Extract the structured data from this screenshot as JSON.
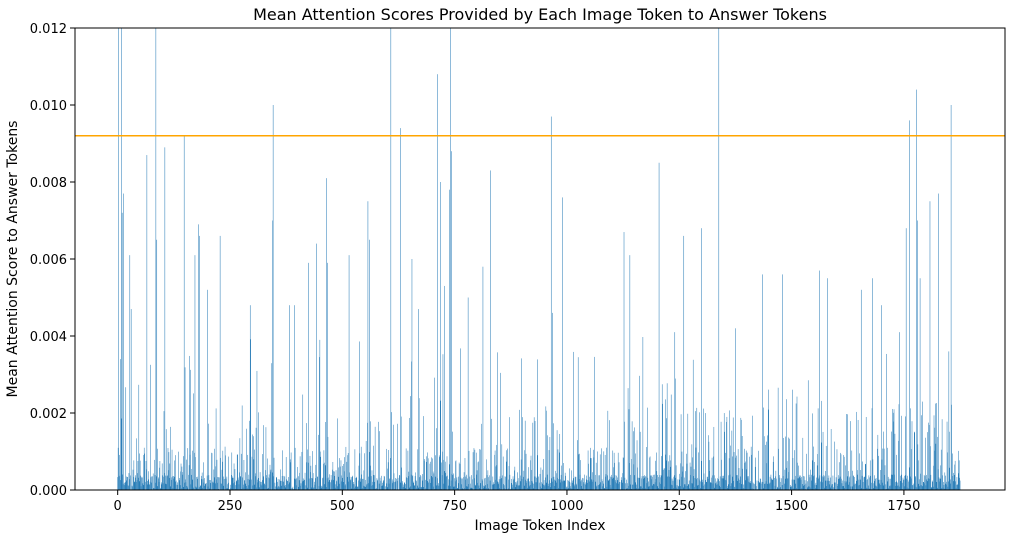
{
  "chart_data": {
    "type": "bar",
    "title": "Mean Attention Scores Provided by Each Image Token to Answer Tokens",
    "xlabel": "Image Token Index",
    "ylabel": "Mean Attention Score to Answer Tokens",
    "xlim": [
      -95,
      1975
    ],
    "ylim": [
      0,
      0.012
    ],
    "xticks": [
      0,
      250,
      500,
      750,
      1000,
      1250,
      1500,
      1750
    ],
    "yticks": [
      0.0,
      0.002,
      0.004,
      0.006,
      0.008,
      0.01,
      0.012
    ],
    "ytick_labels": [
      "0.000",
      "0.002",
      "0.004",
      "0.006",
      "0.008",
      "0.010",
      "0.012"
    ],
    "grid": false,
    "bar_color": "#1f77b4",
    "threshold": {
      "value": 0.0092,
      "color": "#ffa500"
    },
    "n_tokens": 1876,
    "notable_bars": [
      {
        "x": 2,
        "y": 0.012
      },
      {
        "x": 6,
        "y": 0.0034
      },
      {
        "x": 8,
        "y": 0.012
      },
      {
        "x": 10,
        "y": 0.0072
      },
      {
        "x": 13,
        "y": 0.0077
      },
      {
        "x": 27,
        "y": 0.0061
      },
      {
        "x": 30,
        "y": 0.0047
      },
      {
        "x": 65,
        "y": 0.0087
      },
      {
        "x": 85,
        "y": 0.012
      },
      {
        "x": 87,
        "y": 0.0065
      },
      {
        "x": 105,
        "y": 0.0089
      },
      {
        "x": 148,
        "y": 0.0092
      },
      {
        "x": 172,
        "y": 0.0061
      },
      {
        "x": 180,
        "y": 0.0069
      },
      {
        "x": 182,
        "y": 0.0066
      },
      {
        "x": 200,
        "y": 0.0052
      },
      {
        "x": 228,
        "y": 0.0066
      },
      {
        "x": 295,
        "y": 0.0048
      },
      {
        "x": 345,
        "y": 0.007
      },
      {
        "x": 346,
        "y": 0.01
      },
      {
        "x": 382,
        "y": 0.0048
      },
      {
        "x": 393,
        "y": 0.0048
      },
      {
        "x": 425,
        "y": 0.0059
      },
      {
        "x": 443,
        "y": 0.0064
      },
      {
        "x": 465,
        "y": 0.0081
      },
      {
        "x": 467,
        "y": 0.0059
      },
      {
        "x": 515,
        "y": 0.0061
      },
      {
        "x": 557,
        "y": 0.0075
      },
      {
        "x": 560,
        "y": 0.0065
      },
      {
        "x": 608,
        "y": 0.012
      },
      {
        "x": 630,
        "y": 0.0094
      },
      {
        "x": 655,
        "y": 0.006
      },
      {
        "x": 670,
        "y": 0.0047
      },
      {
        "x": 712,
        "y": 0.0108
      },
      {
        "x": 718,
        "y": 0.008
      },
      {
        "x": 728,
        "y": 0.0053
      },
      {
        "x": 738,
        "y": 0.0078
      },
      {
        "x": 741,
        "y": 0.012
      },
      {
        "x": 743,
        "y": 0.0088
      },
      {
        "x": 780,
        "y": 0.005
      },
      {
        "x": 813,
        "y": 0.0058
      },
      {
        "x": 830,
        "y": 0.0083
      },
      {
        "x": 965,
        "y": 0.0097
      },
      {
        "x": 968,
        "y": 0.0046
      },
      {
        "x": 990,
        "y": 0.0076
      },
      {
        "x": 1127,
        "y": 0.0067
      },
      {
        "x": 1140,
        "y": 0.0061
      },
      {
        "x": 1205,
        "y": 0.0085
      },
      {
        "x": 1240,
        "y": 0.0041
      },
      {
        "x": 1260,
        "y": 0.0066
      },
      {
        "x": 1300,
        "y": 0.0068
      },
      {
        "x": 1338,
        "y": 0.012
      },
      {
        "x": 1375,
        "y": 0.0042
      },
      {
        "x": 1435,
        "y": 0.0056
      },
      {
        "x": 1480,
        "y": 0.0056
      },
      {
        "x": 1562,
        "y": 0.0057
      },
      {
        "x": 1580,
        "y": 0.0055
      },
      {
        "x": 1655,
        "y": 0.0052
      },
      {
        "x": 1680,
        "y": 0.0055
      },
      {
        "x": 1700,
        "y": 0.0048
      },
      {
        "x": 1740,
        "y": 0.0041
      },
      {
        "x": 1755,
        "y": 0.0068
      },
      {
        "x": 1762,
        "y": 0.0096
      },
      {
        "x": 1778,
        "y": 0.0104
      },
      {
        "x": 1780,
        "y": 0.007
      },
      {
        "x": 1786,
        "y": 0.0055
      },
      {
        "x": 1808,
        "y": 0.0075
      },
      {
        "x": 1827,
        "y": 0.0077
      },
      {
        "x": 1850,
        "y": 0.0036
      },
      {
        "x": 1855,
        "y": 0.01
      }
    ]
  }
}
